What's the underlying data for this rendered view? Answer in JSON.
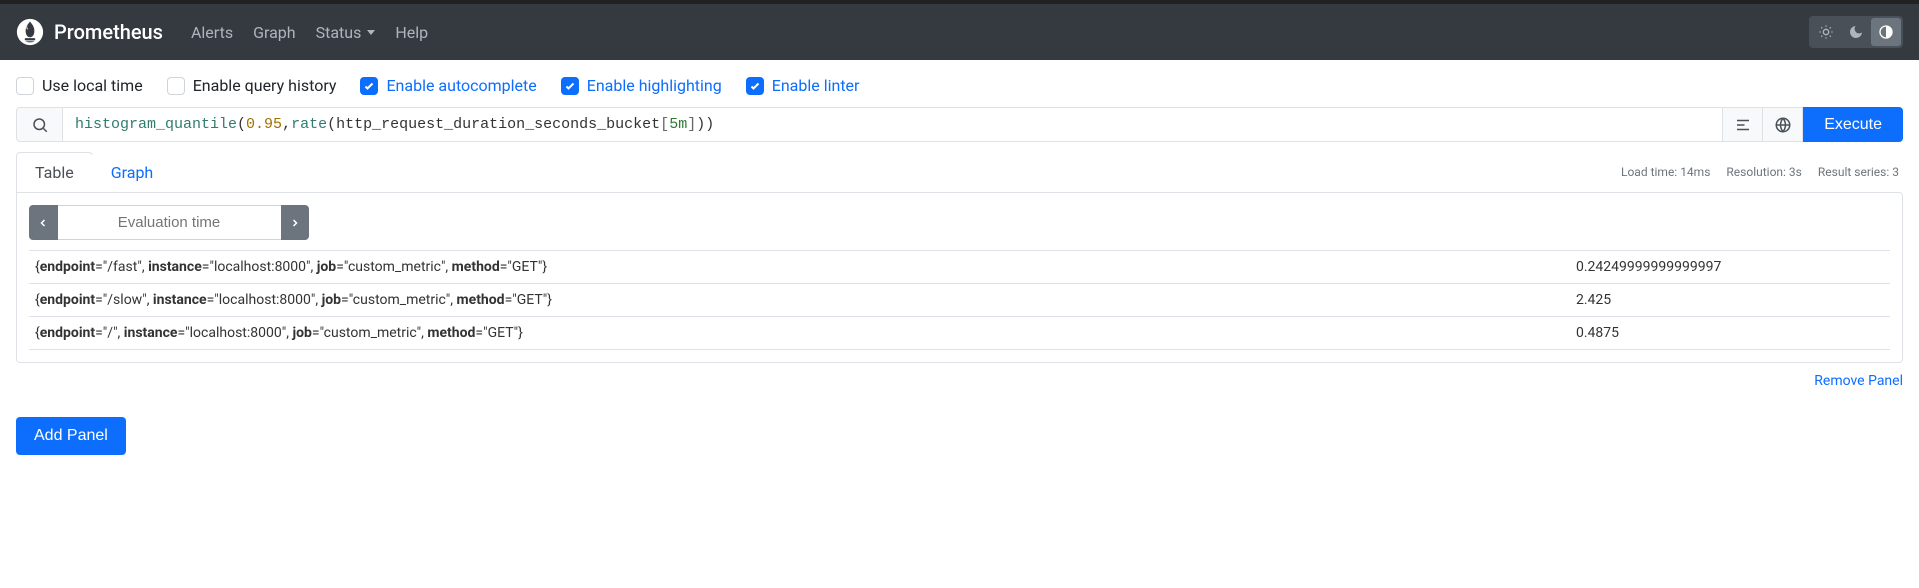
{
  "navbar": {
    "brand": "Prometheus",
    "links": [
      "Alerts",
      "Graph",
      "Status",
      "Help"
    ],
    "status_has_dropdown": true
  },
  "options": [
    {
      "label": "Use local time",
      "checked": false
    },
    {
      "label": "Enable query history",
      "checked": false
    },
    {
      "label": "Enable autocomplete",
      "checked": true
    },
    {
      "label": "Enable highlighting",
      "checked": true
    },
    {
      "label": "Enable linter",
      "checked": true
    }
  ],
  "query": {
    "tokens": [
      {
        "t": "fn",
        "v": "histogram_quantile"
      },
      {
        "t": "punct",
        "v": "("
      },
      {
        "t": "num",
        "v": "0.95"
      },
      {
        "t": "punct",
        "v": ", "
      },
      {
        "t": "fn",
        "v": "rate"
      },
      {
        "t": "punct",
        "v": "("
      },
      {
        "t": "metric",
        "v": "http_request_duration_seconds_bucket"
      },
      {
        "t": "br",
        "v": "["
      },
      {
        "t": "dur",
        "v": "5m"
      },
      {
        "t": "br",
        "v": "]"
      },
      {
        "t": "punct",
        "v": "))"
      }
    ],
    "execute_label": "Execute"
  },
  "tabs": {
    "table": "Table",
    "graph": "Graph",
    "active": "table"
  },
  "stats": {
    "load_time": "Load time: 14ms",
    "resolution": "Resolution: 3s",
    "series": "Result series: 3"
  },
  "eval_placeholder": "Evaluation time",
  "result_labels": [
    "endpoint",
    "instance",
    "job",
    "method"
  ],
  "results": [
    {
      "labels": {
        "endpoint": "/fast",
        "instance": "localhost:8000",
        "job": "custom_metric",
        "method": "GET"
      },
      "value": "0.24249999999999997"
    },
    {
      "labels": {
        "endpoint": "/slow",
        "instance": "localhost:8000",
        "job": "custom_metric",
        "method": "GET"
      },
      "value": "2.425"
    },
    {
      "labels": {
        "endpoint": "/",
        "instance": "localhost:8000",
        "job": "custom_metric",
        "method": "GET"
      },
      "value": "0.4875"
    }
  ],
  "remove_panel": "Remove Panel",
  "add_panel": "Add Panel",
  "colors": {
    "navbar_bg": "#343a40",
    "accent": "#0d6efd",
    "border": "#dee2e6",
    "muted": "#6c757d"
  }
}
